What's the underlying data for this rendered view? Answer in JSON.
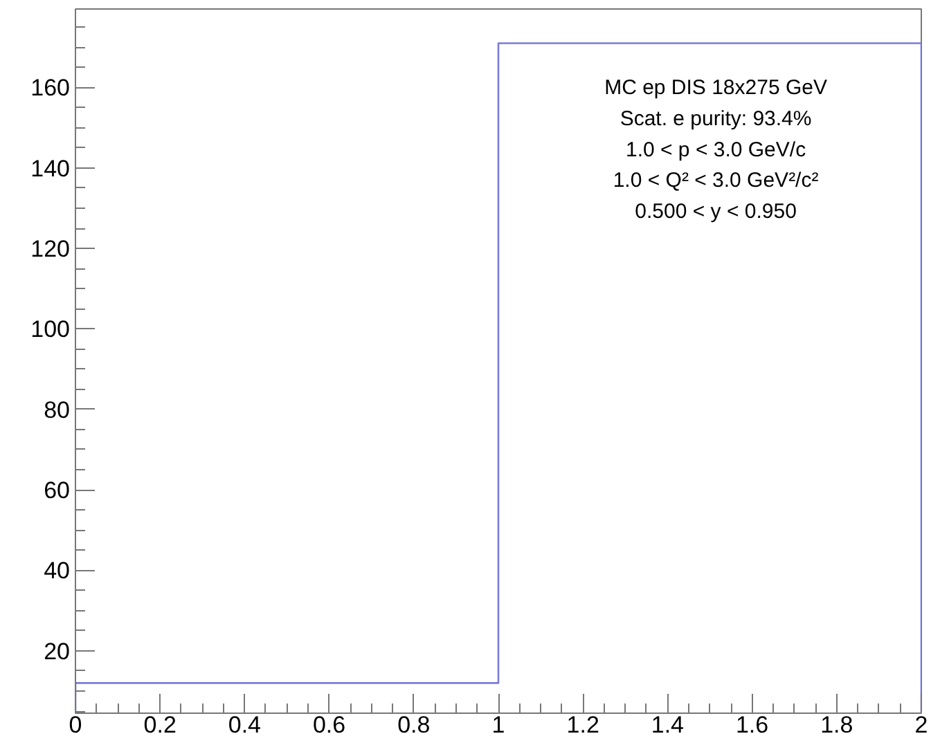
{
  "chart_data": {
    "type": "histogram",
    "bins": [
      0,
      1,
      2
    ],
    "values": [
      12,
      171
    ],
    "color": "#7b7bd9",
    "xlim": [
      0,
      2
    ],
    "xticks": [
      0,
      0.2,
      0.4,
      0.6,
      0.8,
      1,
      1.2,
      1.4,
      1.6,
      1.8,
      2
    ],
    "ylim": [
      4.5,
      179.5
    ],
    "yticks": [
      20,
      40,
      60,
      80,
      100,
      120,
      140,
      160
    ],
    "grid": false,
    "annotations": [
      "MC ep DIS 18x275 GeV",
      "Scat. e purity: 93.4%",
      "1.0 < p < 3.0 GeV/c",
      "1.0 < Q² < 3.0 GeV²/c²",
      "0.500 < y < 0.950"
    ]
  }
}
